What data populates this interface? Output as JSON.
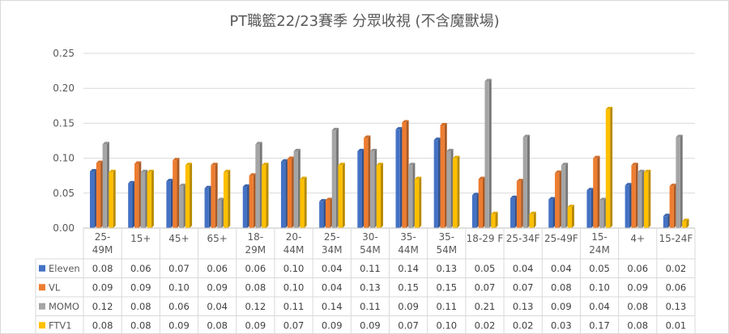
{
  "chart_data": {
    "type": "bar",
    "title": "PT職籃22/23賽季 分眾收視 (不含魔獸場)",
    "categories": [
      [
        "25-",
        "49M"
      ],
      [
        "15+"
      ],
      [
        "45+"
      ],
      [
        "65+"
      ],
      [
        "18-",
        "29M"
      ],
      [
        "20-",
        "44M"
      ],
      [
        "25-",
        "34M"
      ],
      [
        "30-",
        "54M"
      ],
      [
        "35-",
        "44M"
      ],
      [
        "35-",
        "54M"
      ],
      [
        "18-29 F"
      ],
      [
        "25-34F"
      ],
      [
        "25-49F"
      ],
      [
        "15-",
        "24M"
      ],
      [
        "4+"
      ],
      [
        "15-24F"
      ]
    ],
    "ylim": [
      0,
      0.25
    ],
    "yticks": [
      "0.00",
      "0.05",
      "0.10",
      "0.15",
      "0.20",
      "0.25"
    ],
    "grid": true,
    "legend_placement": "data-table",
    "series": [
      {
        "name": "Eleven",
        "color": "#4472c4",
        "values": [
          0.081,
          0.064,
          0.067,
          0.057,
          0.059,
          0.095,
          0.038,
          0.11,
          0.141,
          0.126,
          0.047,
          0.043,
          0.041,
          0.054,
          0.061,
          0.017
        ],
        "labels": [
          "0.08",
          "0.06",
          "0.07",
          "0.06",
          "0.06",
          "0.10",
          "0.04",
          "0.11",
          "0.14",
          "0.13",
          "0.05",
          "0.04",
          "0.04",
          "0.05",
          "0.06",
          "0.02"
        ]
      },
      {
        "name": "VL",
        "color": "#ed7d31",
        "values": [
          0.093,
          0.092,
          0.097,
          0.09,
          0.075,
          0.099,
          0.04,
          0.129,
          0.151,
          0.147,
          0.07,
          0.067,
          0.079,
          0.1,
          0.09,
          0.06
        ],
        "labels": [
          "0.09",
          "0.09",
          "0.10",
          "0.09",
          "0.08",
          "0.10",
          "0.04",
          "0.13",
          "0.15",
          "0.15",
          "0.07",
          "0.07",
          "0.08",
          "0.10",
          "0.09",
          "0.06"
        ]
      },
      {
        "name": "MOMO",
        "color": "#a5a5a5",
        "values": [
          0.12,
          0.08,
          0.06,
          0.04,
          0.12,
          0.11,
          0.14,
          0.11,
          0.09,
          0.11,
          0.21,
          0.13,
          0.09,
          0.04,
          0.08,
          0.13
        ],
        "labels": [
          "0.12",
          "0.08",
          "0.06",
          "0.04",
          "0.12",
          "0.11",
          "0.14",
          "0.11",
          "0.09",
          "0.11",
          "0.21",
          "0.13",
          "0.09",
          "0.04",
          "0.08",
          "0.13"
        ]
      },
      {
        "name": "FTV1",
        "color": "#ffc000",
        "values": [
          0.08,
          0.08,
          0.09,
          0.08,
          0.09,
          0.07,
          0.09,
          0.09,
          0.07,
          0.1,
          0.02,
          0.02,
          0.03,
          0.17,
          0.08,
          0.01
        ],
        "labels": [
          "0.08",
          "0.08",
          "0.09",
          "0.08",
          "0.09",
          "0.07",
          "0.09",
          "0.09",
          "0.07",
          "0.10",
          "0.02",
          "0.02",
          "0.03",
          "0.17",
          "0.08",
          "0.01"
        ]
      }
    ]
  }
}
